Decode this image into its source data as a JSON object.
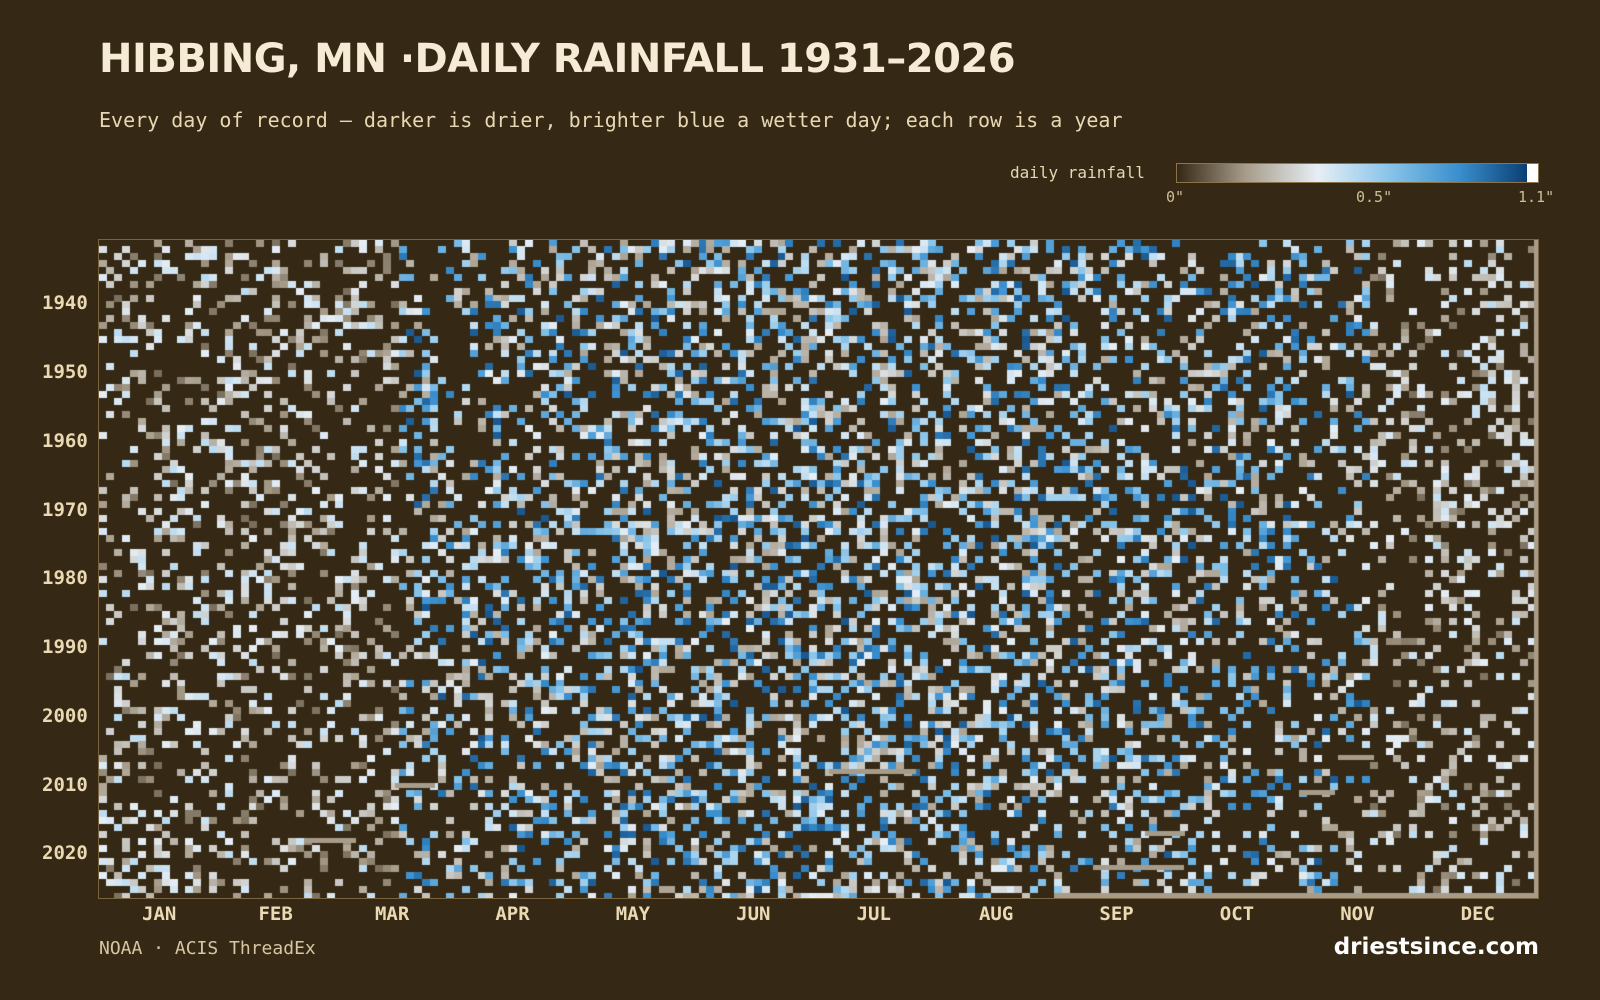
{
  "chart_data": {
    "type": "heatmap",
    "title": "HIBBING, MN ·DAILY RAINFALL 1931–2026",
    "subtitle": "Every day of record — darker is drier, brighter blue a wetter day; each row is a year",
    "x_categories": [
      "JAN",
      "FEB",
      "MAR",
      "APR",
      "MAY",
      "JUN",
      "JUL",
      "AUG",
      "SEP",
      "OCT",
      "NOV",
      "DEC"
    ],
    "y_range": [
      1931,
      2026
    ],
    "y_ticks": [
      "1940",
      "1950",
      "1960",
      "1970",
      "1980",
      "1990",
      "2000",
      "2010",
      "2020"
    ],
    "value_unit": "inches",
    "legend": {
      "label": "daily rainfall",
      "min": 0,
      "max": 1.1,
      "tick_labels": [
        "0\"",
        "0.5\"",
        "1.1\""
      ],
      "colors": [
        "#352915",
        "#a79c8a",
        "#e6eef5",
        "#8cc6ea",
        "#3a8fce",
        "#0b3f74",
        "#ffffff"
      ]
    }
  },
  "footer": {
    "source": "NOAA · ACIS ThreadEx",
    "brand": "driestsince.com"
  }
}
